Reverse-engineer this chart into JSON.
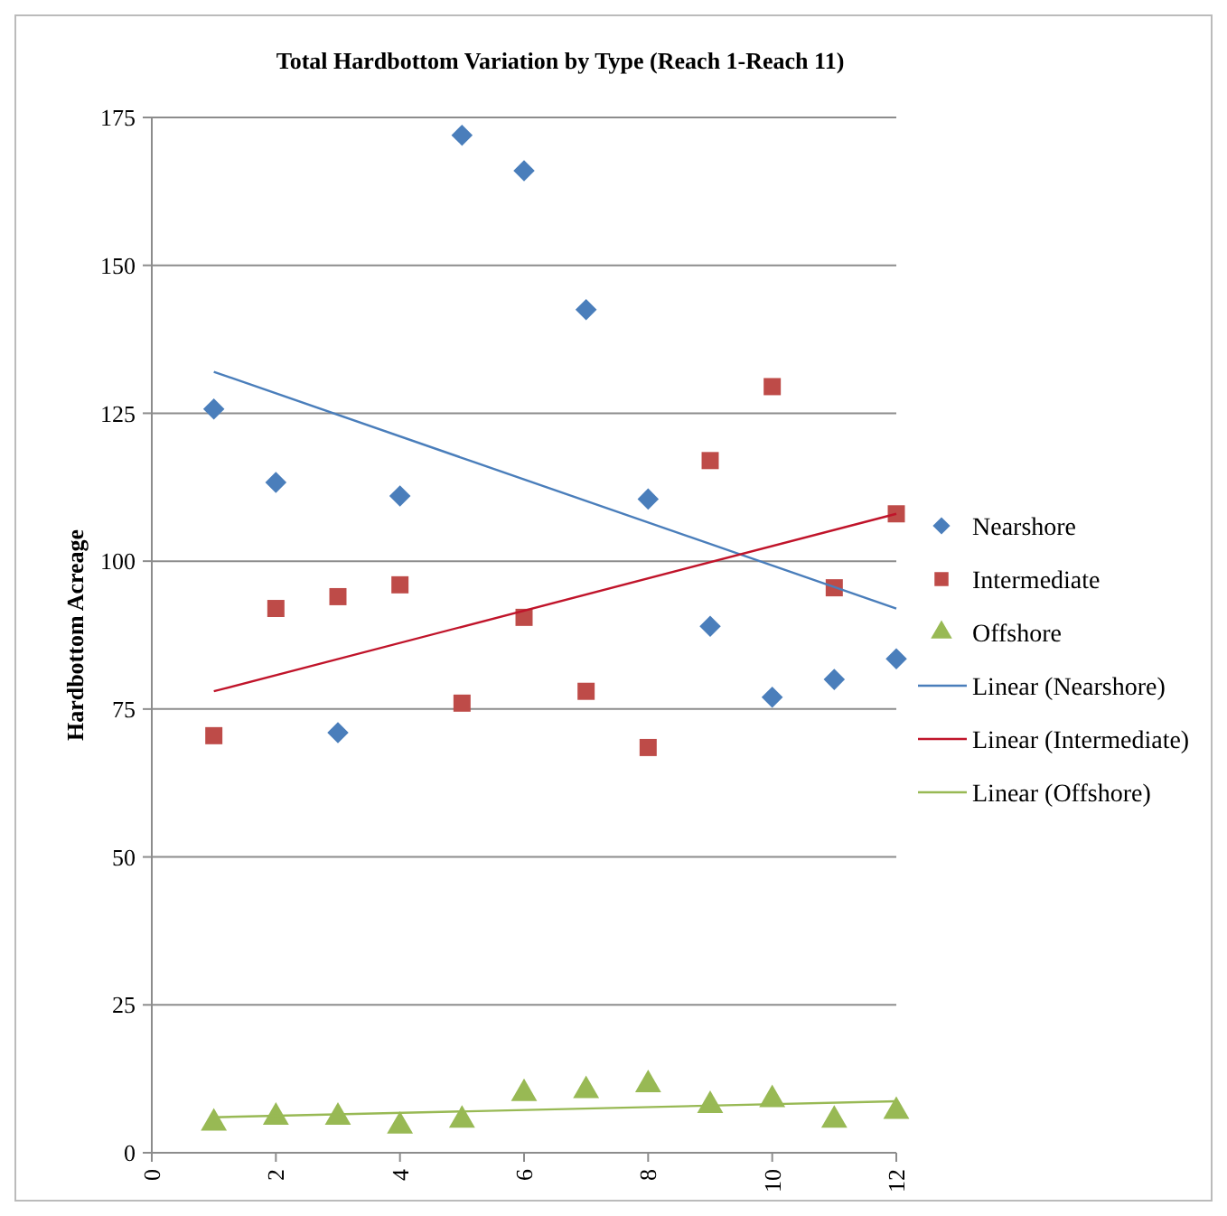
{
  "chart_data": {
    "type": "scatter",
    "title": "Total Hardbottom Variation by Type (Reach 1-Reach 11)",
    "ylabel": "Hardbottom Acreage",
    "x": [
      1,
      2,
      3,
      4,
      5,
      6,
      7,
      8,
      9,
      10,
      11,
      12
    ],
    "xlim": [
      0,
      12
    ],
    "xticks": [
      0,
      2,
      4,
      6,
      8,
      10,
      12
    ],
    "ylim": [
      0,
      175
    ],
    "yticks": [
      0,
      25,
      50,
      75,
      100,
      125,
      150,
      175
    ],
    "grid": "y",
    "legend": "right",
    "series": [
      {
        "name": "Nearshore",
        "color": "#4a7ebb",
        "marker": "diamond",
        "values": [
          125.7,
          113.3,
          71,
          111,
          172,
          166,
          142.5,
          110.5,
          89,
          77,
          80,
          83.5
        ]
      },
      {
        "name": "Intermediate",
        "color": "#be4b48",
        "marker": "square",
        "values": [
          70.5,
          92,
          94,
          96,
          76,
          90.5,
          78,
          68.5,
          117,
          129.5,
          95.5,
          108
        ]
      },
      {
        "name": "Offshore",
        "color": "#98b954",
        "marker": "triangle",
        "values": [
          5,
          6,
          6,
          4.5,
          5.5,
          10,
          10.5,
          11.5,
          8,
          9,
          5.5,
          7
        ]
      },
      {
        "name": "Linear (Nearshore)",
        "type": "line",
        "color": "#4a7ebb",
        "marker": "none",
        "values": [
          132,
          null,
          null,
          null,
          null,
          null,
          null,
          null,
          null,
          null,
          null,
          92
        ]
      },
      {
        "name": "Linear (Intermediate)",
        "type": "line",
        "color": "#c0142a",
        "marker": "none",
        "values": [
          78,
          null,
          null,
          null,
          null,
          null,
          null,
          null,
          null,
          null,
          null,
          108
        ]
      },
      {
        "name": "Linear (Offshore)",
        "type": "line",
        "color": "#98b954",
        "marker": "none",
        "values": [
          6,
          null,
          null,
          null,
          null,
          null,
          null,
          null,
          null,
          null,
          null,
          8.7
        ]
      }
    ]
  }
}
